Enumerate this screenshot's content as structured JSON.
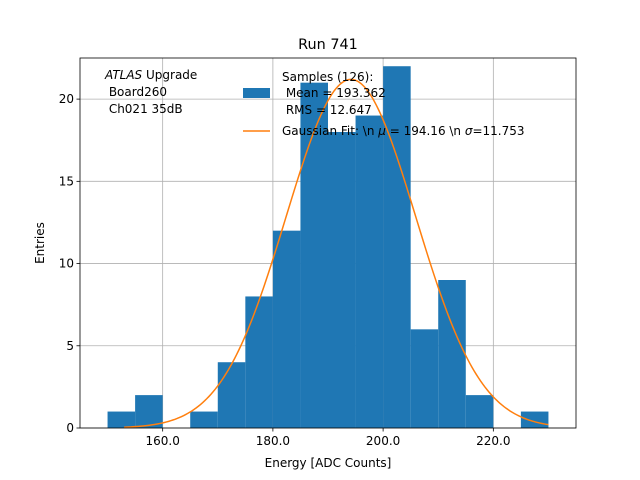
{
  "chart_data": {
    "type": "bar",
    "title": "Run 741",
    "xlabel": "Energy [ADC Counts]",
    "ylabel": "Entries",
    "xlim": [
      145,
      235
    ],
    "ylim": [
      0,
      22.5
    ],
    "x_ticks": [
      160,
      180,
      200,
      220
    ],
    "x_tick_labels": [
      "160.0",
      "180.0",
      "200.0",
      "220.0"
    ],
    "y_ticks": [
      0,
      5,
      10,
      15,
      20
    ],
    "y_tick_labels": [
      "0",
      "5",
      "10",
      "15",
      "20"
    ],
    "grid": true,
    "bin_edges": [
      150,
      155,
      160,
      165,
      170,
      175,
      180,
      185,
      190,
      195,
      200,
      205,
      210,
      215,
      220,
      225,
      230
    ],
    "counts": [
      1,
      2,
      0,
      1,
      4,
      8,
      12,
      21,
      18,
      19,
      22,
      6,
      9,
      2,
      0,
      1
    ],
    "histogram_color": "#1f77b4",
    "fit": {
      "type": "gaussian",
      "mu": 194.16,
      "sigma": 11.753,
      "amplitude": 21.2,
      "x_range": [
        153,
        230
      ],
      "color": "#ff7f0e"
    },
    "annotation": {
      "experiment": "ATLAS",
      "line1_rest": " Upgrade",
      "line2": " Board260",
      "line3": " Ch021 35dB"
    },
    "legend": {
      "placement": "top-right",
      "histogram_line1": "Samples (126):",
      "histogram_line2": " Mean = 193.362",
      "histogram_line3": " RMS = 12.647",
      "fit_label_prefix": "Gaussian Fit: \\n ",
      "fit_label_mu_value": " = 194.16 \\n ",
      "fit_label_sigma_value": "=11.753"
    }
  }
}
